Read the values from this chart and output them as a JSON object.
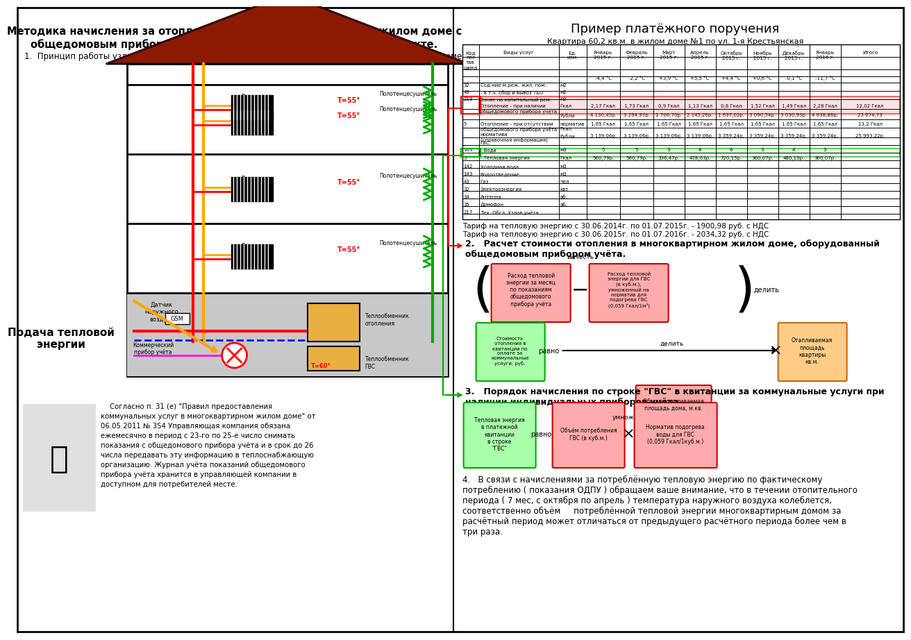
{
  "title_left": "Методика начисления за отопление и ГВС в многоквартирном жилом доме с\nобщедомовым прибором учёта в индивидуальном тепловом пункте.",
  "section1_text": "1.  Принцип работы узла учёта и распределения тепловой энергии в многоквартирном жилом доме.",
  "title_right": "Пример платёжного поручения",
  "subtitle_right": "Квартира 60,2 кв.м. в жилом доме №1 по ул. 1-я Крестьянская",
  "tariff1": "Тариф на тепловую энергию с 30.06.2014г. по 01.07.2015г. - 1900,98 руб. с НДС",
  "tariff2": "Тариф на тепловую энергию с 30.06.2015г. по 01.07.2016г. - 2034,32 руб. с НДС",
  "section2_text": "2.   Расчет стоимости отопления в многоквартирном жилом доме, оборудованный\nобщедомовым прибором учёта.",
  "section3_text": "3.   Порядок начисления по строке \"ГВС\" в квитанции за коммунальные услуги при\nналичии индивидуальных приборов учёта.",
  "подача_text": "Подача тепловой\nэнергии",
  "legal_lines": [
    "    Согласно п. 31 (е) \"Правил предоставления",
    "коммунальных услуг в многоквартирном жилом доме\" от",
    "06.05.2011 № 354 Управляющая компания обязана",
    "ежемесячно в период с 23-го по 25-е число снимать",
    "показания с общедомового прибора учёта и в срок до 26",
    "числа передавать эту информацию в теплоснабжающую",
    "организацию. Журнал учёта показаний общедомового",
    "прибора учёта хранится в управляющей компании в",
    "доступном для потребителей месте."
  ],
  "section4_lines": [
    "4.   В связи с начислениями за потреблённую тепловую энергию по фактическому",
    "потреблению ( показания ОДПУ ) обращаем ваше внимание, что в течении отопительного",
    "периода ( 7 мес, с октября по апрель ) температура наружного воздуха колеблется,",
    "соответственно объём     потреблённой тепловой энергии многоквартирным домом за",
    "расчётный период может отличаться от предыдущего расчётного периода более чем в",
    "три раза."
  ]
}
